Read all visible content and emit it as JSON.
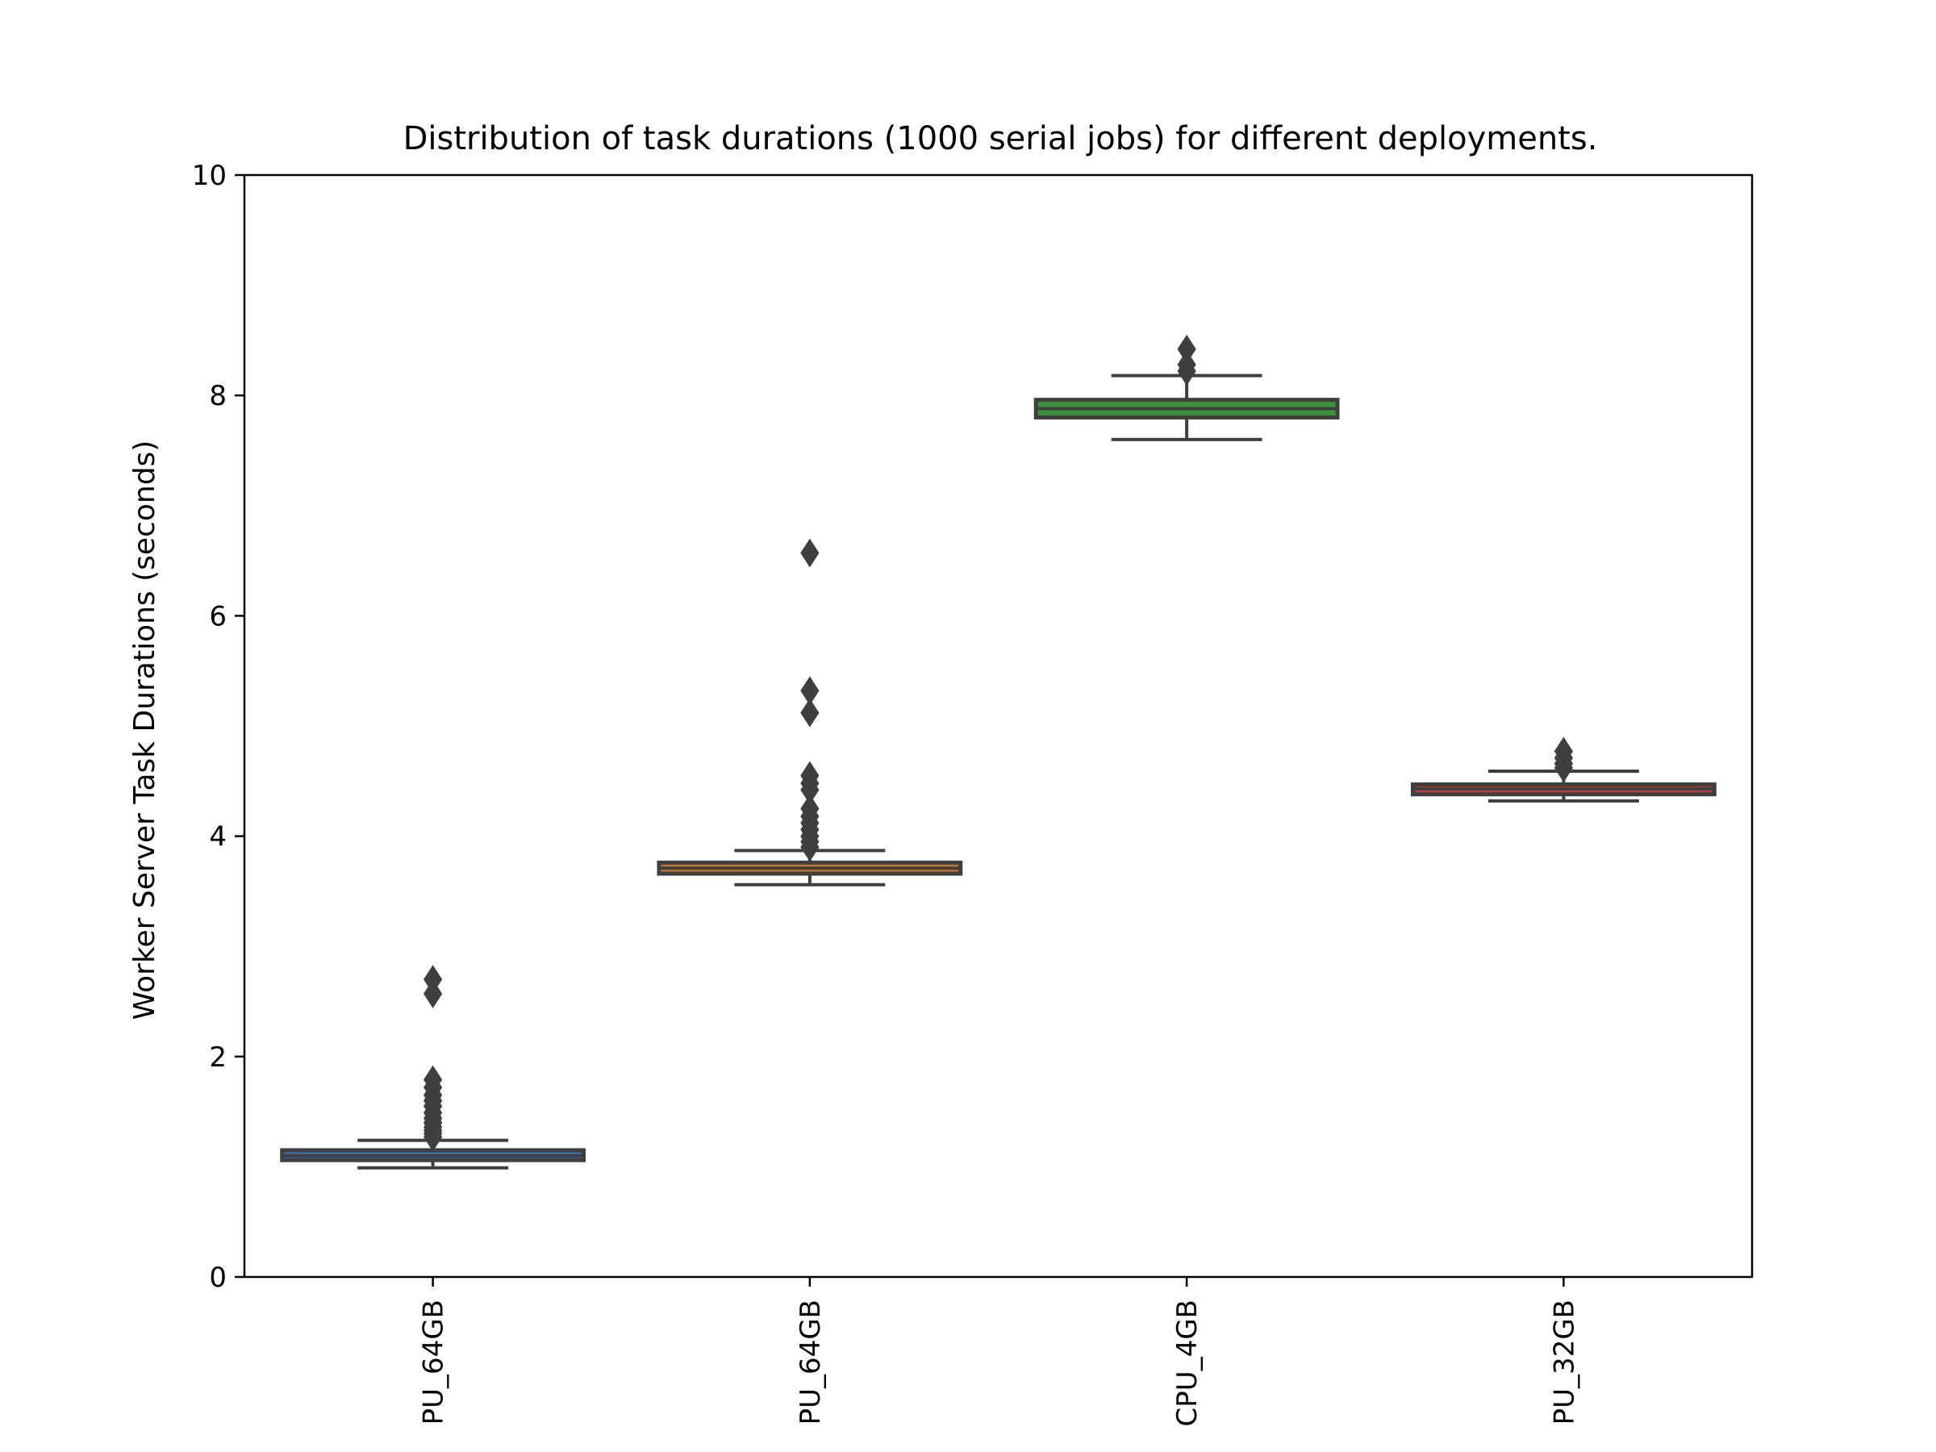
{
  "chart_data": {
    "type": "box",
    "title": "Distribution of task durations (1000 serial jobs) for different deployments.",
    "xlabel": "",
    "ylabel": "Worker Server Task Durations (seconds)",
    "ylim": [
      0,
      10
    ],
    "yticks": [
      "0",
      "2",
      "4",
      "6",
      "8",
      "10"
    ],
    "grid": false,
    "categories": [
      "PU_64GB",
      "PU_64GB",
      "CPU_4GB",
      "PU_32GB"
    ],
    "boxes": [
      {
        "category": "PU_64GB",
        "whisker_low": 0.99,
        "q1": 1.06,
        "median": 1.1,
        "q3": 1.15,
        "whisker_high": 1.24,
        "fliers": [
          1.27,
          1.3,
          1.33,
          1.36,
          1.4,
          1.44,
          1.49,
          1.55,
          1.6,
          1.65,
          1.72,
          1.79,
          2.57,
          2.7
        ],
        "color": "#3a6fa8"
      },
      {
        "category": "PU_64GB",
        "whisker_low": 3.56,
        "q1": 3.66,
        "median": 3.71,
        "q3": 3.76,
        "whisker_high": 3.87,
        "fliers": [
          3.9,
          3.95,
          4.0,
          4.06,
          4.12,
          4.18,
          4.25,
          4.42,
          4.48,
          4.55,
          5.12,
          5.32,
          6.57
        ],
        "color": "#c8772c"
      },
      {
        "category": "CPU_4GB",
        "whisker_low": 7.6,
        "q1": 7.8,
        "median": 7.88,
        "q3": 7.96,
        "whisker_high": 8.18,
        "fliers": [
          8.22,
          8.28,
          8.42
        ],
        "color": "#3a923a"
      },
      {
        "category": "PU_32GB",
        "whisker_low": 4.32,
        "q1": 4.38,
        "median": 4.43,
        "q3": 4.47,
        "whisker_high": 4.59,
        "fliers": [
          4.62,
          4.66,
          4.71,
          4.77
        ],
        "color": "#c03d3e"
      }
    ]
  },
  "colors": {
    "box_edge": "#3f3f3f",
    "axis": "#000000"
  }
}
